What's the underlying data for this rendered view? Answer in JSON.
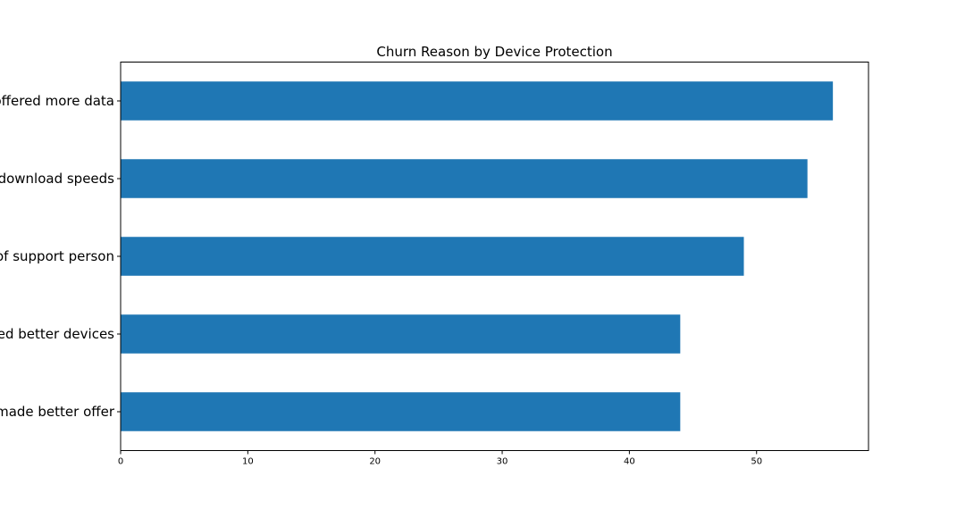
{
  "chart_data": {
    "type": "bar",
    "orientation": "horizontal",
    "title": "Churn Reason by Device Protection",
    "xlabel": "",
    "ylabel": "",
    "categories": [
      "Competitor offered more data",
      "Competitor had faster download speeds",
      "Attitude of support person",
      "Competitor offered better devices",
      "Competitor made better offer"
    ],
    "values": [
      56,
      54,
      49,
      44,
      44
    ],
    "xlim": [
      0,
      58.8
    ],
    "xticks": [
      0,
      10,
      20,
      30,
      40,
      50
    ],
    "xtick_labels": [
      "0",
      "10",
      "20",
      "30",
      "40",
      "50"
    ],
    "bar_color": "#1f77b4",
    "grid": false,
    "legend": "none"
  }
}
